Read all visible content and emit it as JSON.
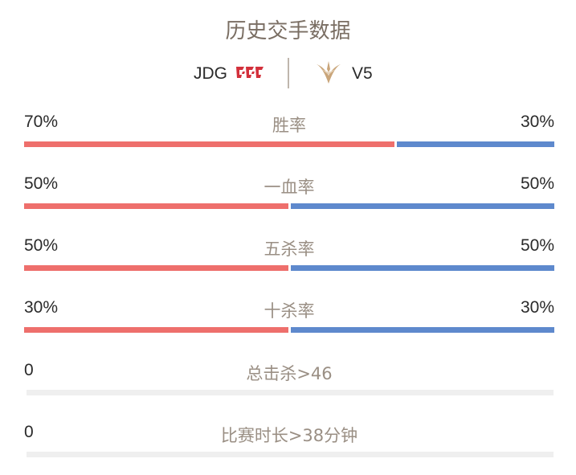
{
  "header": {
    "title": "历史交手数据"
  },
  "teams": {
    "left": {
      "name": "JDG",
      "logo_icon": "jdg-logo-icon",
      "color": "#d3303b"
    },
    "right": {
      "name": "V5",
      "logo_icon": "v5-logo-icon",
      "color": "#c9a57a"
    }
  },
  "colors": {
    "left_bar": "#ee6f6c",
    "right_bar": "#5e89cd",
    "empty_bar": "#efefef"
  },
  "stats": [
    {
      "label": "胜率",
      "left": "70%",
      "right": "30%",
      "left_share": 0.7,
      "right_share": 0.3
    },
    {
      "label": "一血率",
      "left": "50%",
      "right": "50%",
      "left_share": 0.5,
      "right_share": 0.5
    },
    {
      "label": "五杀率",
      "left": "50%",
      "right": "50%",
      "left_share": 0.5,
      "right_share": 0.5
    },
    {
      "label": "十杀率",
      "left": "30%",
      "right": "30%",
      "left_share": 0.5,
      "right_share": 0.5
    },
    {
      "label": "总击杀>46",
      "left": "0",
      "right": "",
      "left_share": 0,
      "right_share": 0
    },
    {
      "label": "比赛时长>38分钟",
      "left": "0",
      "right": "",
      "left_share": 0,
      "right_share": 0
    }
  ]
}
